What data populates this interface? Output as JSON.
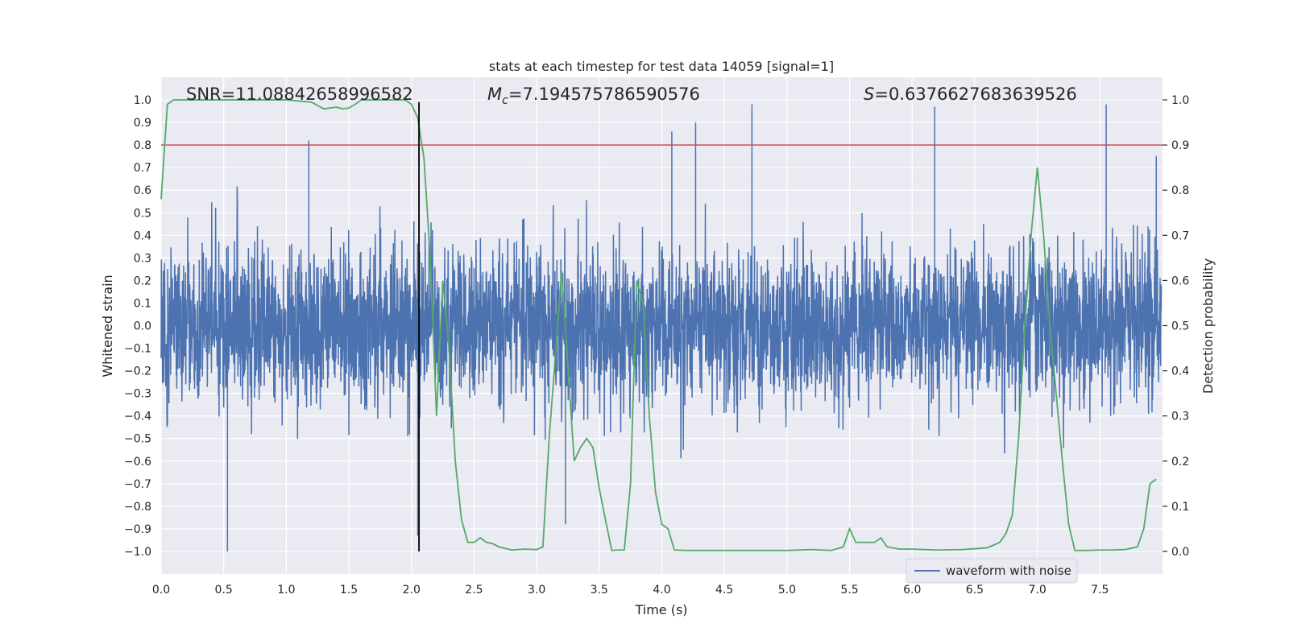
{
  "chart_data": {
    "type": "line",
    "title": "stats at each timestep for test data 14059 [signal=1]",
    "xlabel": "Time (s)",
    "ylabel": "Whitened strain",
    "y2label": "Detection probability",
    "xlim": [
      0.0,
      8.0
    ],
    "ylim": [
      -1.1,
      1.1
    ],
    "y2lim": [
      -0.05,
      1.05
    ],
    "xticks": [
      "0.0",
      "0.5",
      "1.0",
      "1.5",
      "2.0",
      "2.5",
      "3.0",
      "3.5",
      "4.0",
      "4.5",
      "5.0",
      "5.5",
      "6.0",
      "6.5",
      "7.0",
      "7.5"
    ],
    "xtick_values": [
      0.0,
      0.5,
      1.0,
      1.5,
      2.0,
      2.5,
      3.0,
      3.5,
      4.0,
      4.5,
      5.0,
      5.5,
      6.0,
      6.5,
      7.0,
      7.5
    ],
    "yticks": [
      "1.0",
      "0.9",
      "0.8",
      "0.7",
      "0.6",
      "0.5",
      "0.4",
      "0.3",
      "0.2",
      "0.1",
      "0.0",
      "−0.1",
      "−0.2",
      "−0.3",
      "−0.4",
      "−0.5",
      "−0.6",
      "−0.7",
      "−0.8",
      "−0.9",
      "−1.0"
    ],
    "ytick_values": [
      1.0,
      0.9,
      0.8,
      0.7,
      0.6,
      0.5,
      0.4,
      0.3,
      0.2,
      0.1,
      0.0,
      -0.1,
      -0.2,
      -0.3,
      -0.4,
      -0.5,
      -0.6,
      -0.7,
      -0.8,
      -0.9,
      -1.0
    ],
    "y2ticks": [
      "1.0",
      "0.9",
      "0.8",
      "0.7",
      "0.6",
      "0.5",
      "0.4",
      "0.3",
      "0.2",
      "0.1",
      "0.0"
    ],
    "y2tick_values": [
      1.0,
      0.9,
      0.8,
      0.7,
      0.6,
      0.5,
      0.4,
      0.3,
      0.2,
      0.1,
      0.0
    ],
    "grid": true,
    "legend": {
      "position": "lower-right",
      "entries": [
        "waveform with noise"
      ]
    },
    "annotations": {
      "snr": "SNR=11.08842658996582",
      "mc": "=7.194575786590576",
      "mc_symbol": "M",
      "mc_sub": "c",
      "s": "=0.6376627683639526",
      "s_symbol": "S"
    },
    "series": [
      {
        "name": "waveform with noise",
        "kind": "noise",
        "color": "#4c72b0",
        "sample_rate": 512,
        "t_end": 7.99,
        "typical_amplitude": 0.35,
        "peak_max": 0.99,
        "peak_min": -1.0,
        "notable_spikes": [
          {
            "x": 0.53,
            "y": -1.0
          },
          {
            "x": 1.18,
            "y": 0.82
          },
          {
            "x": 2.05,
            "y": -0.93
          },
          {
            "x": 3.23,
            "y": -0.88
          },
          {
            "x": 4.08,
            "y": 0.86
          },
          {
            "x": 4.27,
            "y": 0.9
          },
          {
            "x": 4.72,
            "y": 0.98
          },
          {
            "x": 6.18,
            "y": 0.97
          },
          {
            "x": 7.55,
            "y": 0.98
          },
          {
            "x": 7.95,
            "y": 0.75
          }
        ]
      },
      {
        "name": "",
        "kind": "probability",
        "axis": "right",
        "color": "#55a868",
        "x": [
          0.0,
          0.05,
          0.1,
          0.2,
          0.3,
          0.5,
          0.8,
          1.0,
          1.2,
          1.3,
          1.35,
          1.4,
          1.45,
          1.5,
          1.55,
          1.6,
          1.65,
          1.7,
          1.8,
          1.9,
          1.95,
          2.0,
          2.05,
          2.1,
          2.15,
          2.2,
          2.25,
          2.3,
          2.35,
          2.4,
          2.45,
          2.5,
          2.55,
          2.6,
          2.65,
          2.7,
          2.8,
          2.9,
          3.0,
          3.05,
          3.1,
          3.2,
          3.3,
          3.35,
          3.4,
          3.45,
          3.5,
          3.55,
          3.6,
          3.65,
          3.7,
          3.75,
          3.8,
          3.85,
          3.9,
          3.95,
          4.0,
          4.05,
          4.1,
          4.2,
          4.4,
          4.6,
          4.8,
          5.0,
          5.2,
          5.35,
          5.45,
          5.5,
          5.55,
          5.6,
          5.65,
          5.7,
          5.75,
          5.8,
          5.9,
          6.0,
          6.2,
          6.4,
          6.6,
          6.7,
          6.75,
          6.8,
          6.85,
          6.9,
          6.95,
          7.0,
          7.05,
          7.1,
          7.15,
          7.2,
          7.25,
          7.3,
          7.4,
          7.5,
          7.6,
          7.7,
          7.8,
          7.85,
          7.9,
          7.95
        ],
        "values": [
          0.78,
          0.99,
          1.0,
          1.0,
          1.0,
          1.0,
          1.0,
          1.0,
          0.995,
          0.98,
          0.982,
          0.984,
          0.98,
          0.982,
          0.99,
          1.0,
          1.0,
          1.0,
          1.0,
          1.0,
          1.0,
          0.99,
          0.96,
          0.87,
          0.65,
          0.3,
          0.6,
          0.45,
          0.2,
          0.07,
          0.02,
          0.02,
          0.03,
          0.02,
          0.017,
          0.01,
          0.003,
          0.005,
          0.004,
          0.01,
          0.25,
          0.62,
          0.2,
          0.23,
          0.25,
          0.23,
          0.14,
          0.07,
          0.002,
          0.003,
          0.003,
          0.15,
          0.6,
          0.55,
          0.3,
          0.13,
          0.06,
          0.05,
          0.003,
          0.002,
          0.002,
          0.002,
          0.002,
          0.002,
          0.004,
          0.002,
          0.01,
          0.05,
          0.02,
          0.02,
          0.02,
          0.02,
          0.03,
          0.01,
          0.005,
          0.005,
          0.003,
          0.004,
          0.008,
          0.02,
          0.04,
          0.08,
          0.25,
          0.5,
          0.7,
          0.85,
          0.7,
          0.5,
          0.35,
          0.2,
          0.06,
          0.002,
          0.002,
          0.003,
          0.003,
          0.004,
          0.01,
          0.05,
          0.15,
          0.16
        ]
      }
    ],
    "threshold": {
      "axis": "right",
      "value": 0.9,
      "color": "#c44e52"
    },
    "vline": {
      "x": 2.06,
      "ymin": -1.0,
      "ymax": 0.99,
      "color": "#000000"
    }
  }
}
